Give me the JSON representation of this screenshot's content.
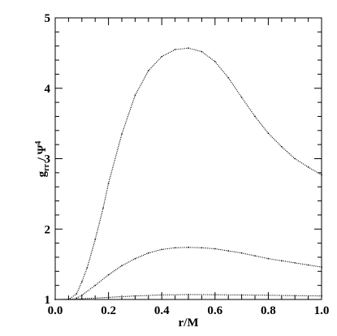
{
  "chart_data": {
    "type": "scatter",
    "title": "",
    "xlabel": "r/M",
    "ylabel": "g_rr / Ψ^4",
    "ylabel_parts": {
      "main": "g",
      "sub": "rr",
      "mid": " / Ψ",
      "sup": "4"
    },
    "xlim": [
      0.0,
      1.0
    ],
    "ylim": [
      1.0,
      5.0
    ],
    "x_ticks": [
      0.0,
      0.2,
      0.4,
      0.6,
      0.8,
      1.0
    ],
    "x_tick_labels": [
      "0.0",
      "0.2",
      "0.4",
      "0.6",
      "0.8",
      "1.0"
    ],
    "y_ticks": [
      1,
      2,
      3,
      4,
      5
    ],
    "y_tick_labels": [
      "1",
      "2",
      "3",
      "4",
      "5"
    ],
    "grid": false,
    "legend": "none",
    "series": [
      {
        "x": [
          0.05,
          0.08,
          0.1,
          0.12,
          0.15,
          0.18,
          0.2,
          0.25,
          0.3,
          0.35,
          0.4,
          0.45,
          0.5,
          0.55,
          0.6,
          0.65,
          0.7,
          0.75,
          0.8,
          0.85,
          0.9,
          0.95,
          1.0
        ],
        "values": [
          1.0,
          1.08,
          1.25,
          1.45,
          1.85,
          2.3,
          2.65,
          3.35,
          3.9,
          4.25,
          4.45,
          4.55,
          4.57,
          4.52,
          4.38,
          4.15,
          3.87,
          3.6,
          3.36,
          3.17,
          3.0,
          2.88,
          2.77
        ]
      },
      {
        "x": [
          0.08,
          0.1,
          0.15,
          0.2,
          0.25,
          0.3,
          0.35,
          0.4,
          0.45,
          0.5,
          0.55,
          0.6,
          0.65,
          0.7,
          0.75,
          0.8,
          0.85,
          0.9,
          0.95,
          1.0
        ],
        "values": [
          1.02,
          1.06,
          1.2,
          1.35,
          1.48,
          1.58,
          1.66,
          1.71,
          1.735,
          1.74,
          1.735,
          1.72,
          1.69,
          1.66,
          1.62,
          1.58,
          1.55,
          1.52,
          1.49,
          1.46
        ]
      },
      {
        "x": [
          0.0,
          0.1,
          0.2,
          0.3,
          0.4,
          0.5,
          0.6,
          0.7,
          0.8,
          0.9,
          1.0
        ],
        "values": [
          1.0,
          1.01,
          1.03,
          1.05,
          1.065,
          1.07,
          1.068,
          1.064,
          1.06,
          1.055,
          1.05
        ]
      }
    ]
  }
}
